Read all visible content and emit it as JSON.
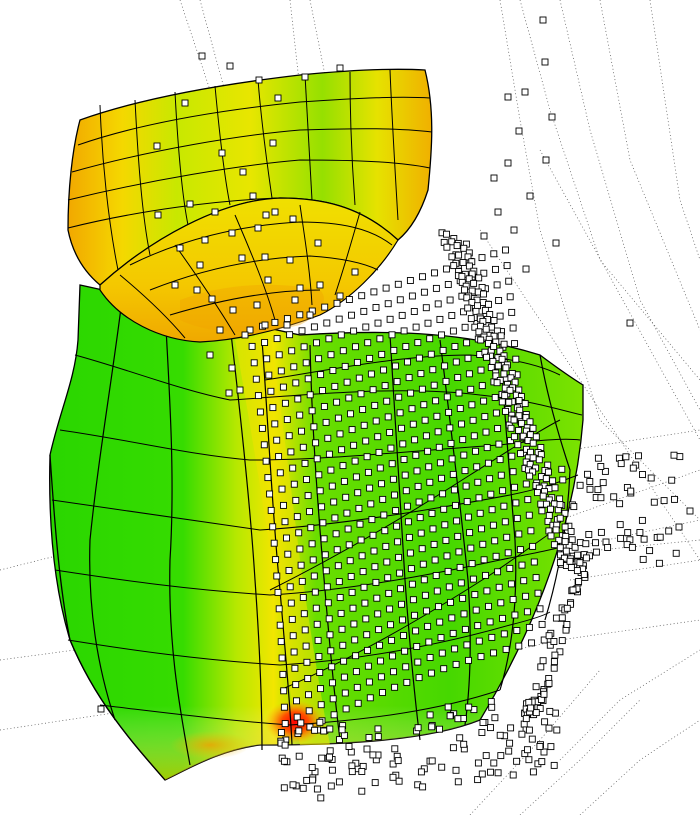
{
  "viewer": {
    "title": "",
    "background_color": "#ffffff",
    "control_point_fill": "#ffffff",
    "control_point_stroke": "#000000",
    "isoparm_color": "#000000"
  },
  "surface_colormap": {
    "description_colors": {
      "low": "#22d400",
      "mid_low": "#7fe000",
      "mid": "#e8e800",
      "mid_high": "#f0b000",
      "high": "#ff0000"
    }
  },
  "objects": [
    {
      "id": "bowl-surface",
      "kind": "nurbs-surface"
    },
    {
      "id": "body-surface",
      "kind": "nurbs-surface"
    },
    {
      "id": "control-net",
      "kind": "control-point-cloud"
    }
  ]
}
